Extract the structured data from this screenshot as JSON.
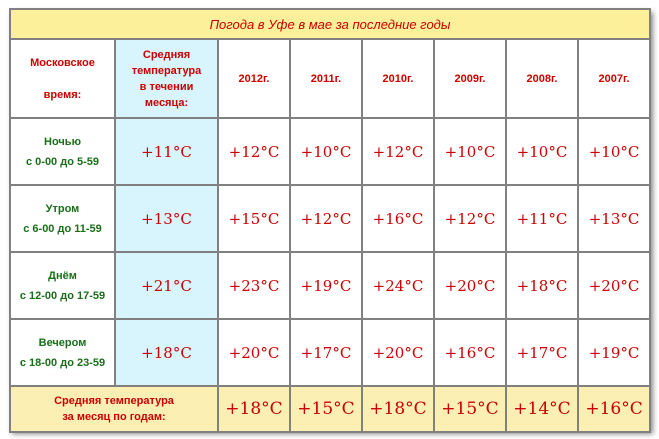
{
  "title": "Погода в Уфе в мае за последние годы",
  "header": {
    "time_col": [
      "Московское",
      "время:"
    ],
    "avg_col": [
      "Средняя",
      "температура",
      "в течении",
      "месяца:"
    ],
    "years": [
      "2012г.",
      "2011г.",
      "2010г.",
      "2009г.",
      "2008г.",
      "2007г."
    ]
  },
  "rows": [
    {
      "name": "Ночью",
      "range": "с 0-00 до 5-59",
      "avg": "+11°C",
      "values": [
        "+12°C",
        "+10°C",
        "+12°C",
        "+10°C",
        "+10°C",
        "+10°C"
      ]
    },
    {
      "name": "Утром",
      "range": "с 6-00 до 11-59",
      "avg": "+13°C",
      "values": [
        "+15°C",
        "+12°C",
        "+16°C",
        "+12°C",
        "+11°C",
        "+13°C"
      ]
    },
    {
      "name": "Днём",
      "range": "с 12-00 до 17-59",
      "avg": "+21°C",
      "values": [
        "+23°C",
        "+19°C",
        "+24°C",
        "+20°C",
        "+18°C",
        "+20°C"
      ]
    },
    {
      "name": "Вечером",
      "range": "с 18-00 до 23-59",
      "avg": "+18°C",
      "values": [
        "+20°C",
        "+17°C",
        "+20°C",
        "+16°C",
        "+17°C",
        "+19°C"
      ]
    }
  ],
  "footer": {
    "label": [
      "Средняя температура",
      "за месяц по годам:"
    ],
    "values": [
      "+18°C",
      "+15°C",
      "+18°C",
      "+15°C",
      "+14°C",
      "+16°C"
    ]
  }
}
